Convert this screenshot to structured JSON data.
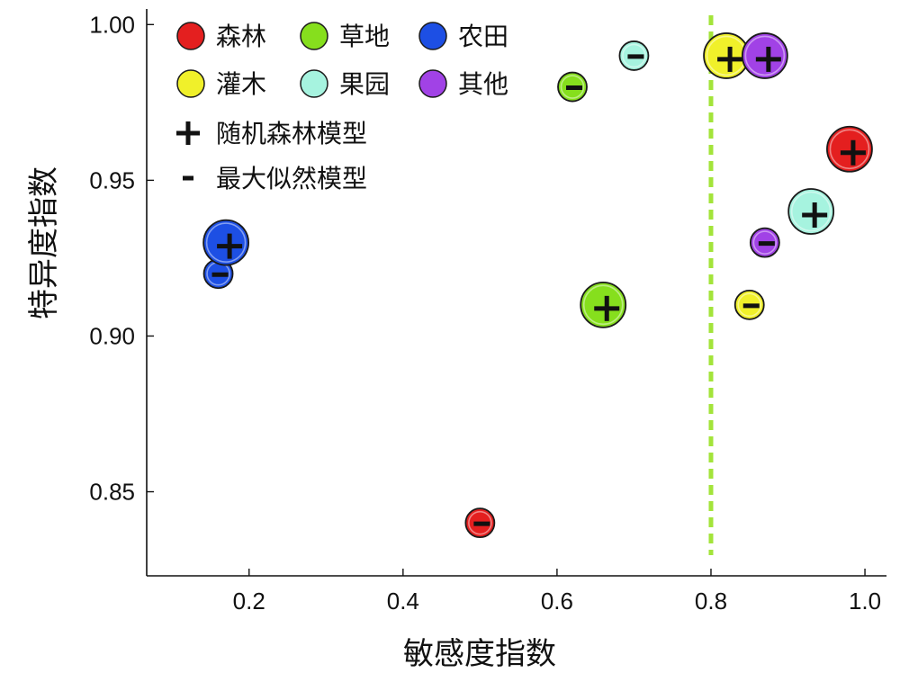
{
  "chart_data": {
    "type": "scatter",
    "xlabel": "敏感度指数",
    "ylabel": "特异度指数",
    "xlim": [
      0.067,
      1.028
    ],
    "ylim": [
      0.823,
      1.005
    ],
    "xticks": [
      "0.2",
      "0.4",
      "0.6",
      "0.8",
      "1.0"
    ],
    "yticks": [
      "0.85",
      "0.90",
      "0.95",
      "1.00"
    ],
    "grid": false,
    "legend_position": "top-left",
    "reference_line": {
      "x": 0.8,
      "color": "#a3e43a"
    },
    "categories": [
      {
        "name": "森林",
        "color": "#e41f1f"
      },
      {
        "name": "草地",
        "color": "#86df1d"
      },
      {
        "name": "农田",
        "color": "#1d4fe4"
      },
      {
        "name": "灌木",
        "color": "#f0f02a"
      },
      {
        "name": "果园",
        "color": "#a6f3df"
      },
      {
        "name": "其他",
        "color": "#a142e6"
      }
    ],
    "series": [
      {
        "name": "随机森林模型",
        "marker": "plus",
        "points": [
          {
            "category": "森林",
            "x": 0.98,
            "y": 0.96
          },
          {
            "category": "草地",
            "x": 0.66,
            "y": 0.91
          },
          {
            "category": "农田",
            "x": 0.17,
            "y": 0.93
          },
          {
            "category": "灌木",
            "x": 0.82,
            "y": 0.99
          },
          {
            "category": "果园",
            "x": 0.93,
            "y": 0.94
          },
          {
            "category": "其他",
            "x": 0.87,
            "y": 0.99
          }
        ]
      },
      {
        "name": "最大似然模型",
        "marker": "minus",
        "points": [
          {
            "category": "森林",
            "x": 0.5,
            "y": 0.84
          },
          {
            "category": "草地",
            "x": 0.62,
            "y": 0.98
          },
          {
            "category": "农田",
            "x": 0.16,
            "y": 0.92
          },
          {
            "category": "灌木",
            "x": 0.85,
            "y": 0.91
          },
          {
            "category": "果园",
            "x": 0.7,
            "y": 0.99
          },
          {
            "category": "其他",
            "x": 0.87,
            "y": 0.93
          }
        ]
      }
    ]
  }
}
